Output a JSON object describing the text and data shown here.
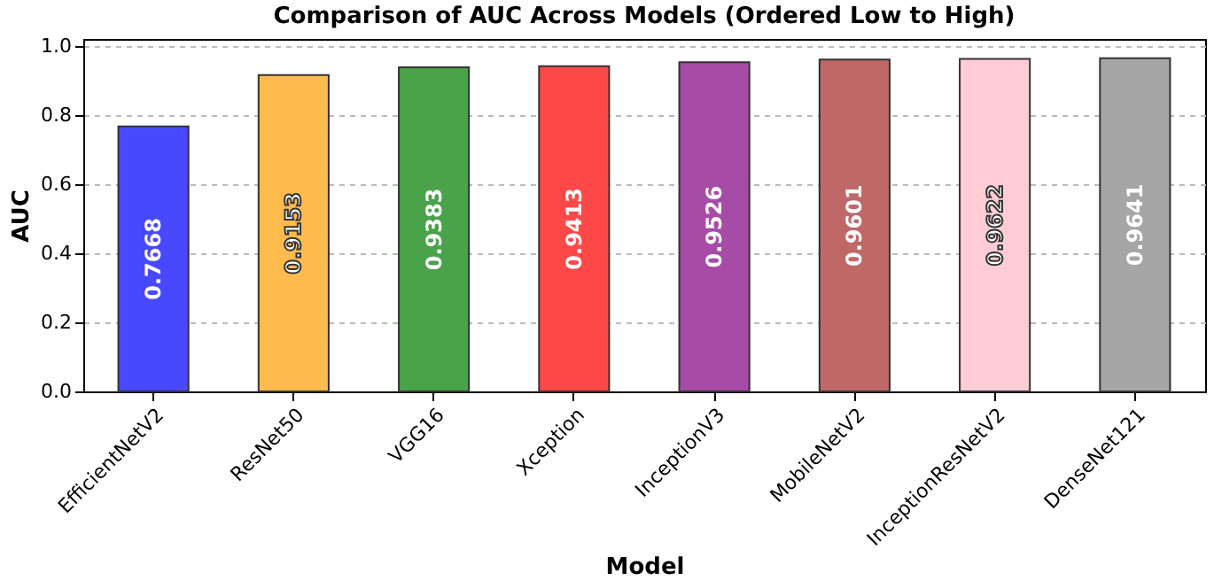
{
  "chart_data": {
    "type": "bar",
    "title": "Comparison of AUC Across Models (Ordered Low to High)",
    "xlabel": "Model",
    "ylabel": "AUC",
    "categories": [
      "EfficientNetV2",
      "ResNet50",
      "VGG16",
      "Xception",
      "InceptionV3",
      "MobileNetV2",
      "InceptionResNetV2",
      "DenseNet121"
    ],
    "values": [
      0.7668,
      0.9153,
      0.9383,
      0.9413,
      0.9526,
      0.9601,
      0.9622,
      0.9641
    ],
    "colors": [
      "#4848ff",
      "#ffbb4d",
      "#4aa24a",
      "#ff4848",
      "#a64ca6",
      "#c06868",
      "#ffccd6",
      "#a6a6a6"
    ],
    "ylim": [
      0,
      1.02
    ],
    "yticks": [
      {
        "value": 0,
        "label": "0.0"
      },
      {
        "value": 0.2,
        "label": "0.2"
      },
      {
        "value": 0.4,
        "label": "0.4"
      },
      {
        "value": 0.6,
        "label": "0.6"
      },
      {
        "value": 0.8,
        "label": "0.8"
      },
      {
        "value": 1,
        "label": "1.0"
      }
    ],
    "grid": "y",
    "data_labels": true
  }
}
